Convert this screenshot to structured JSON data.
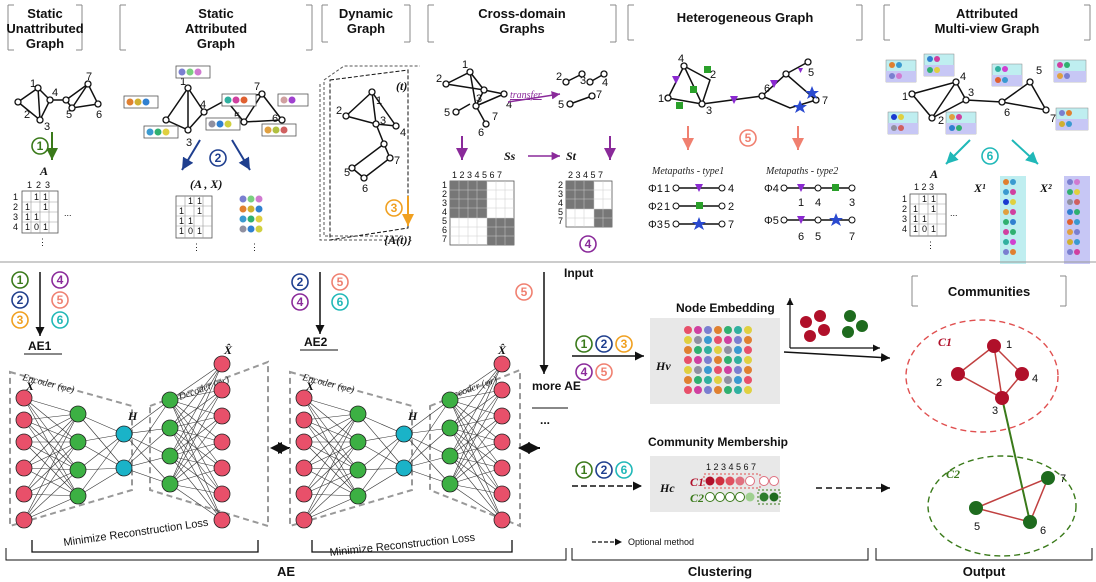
{
  "headers": {
    "static_unattributed": [
      "Static",
      "Unattributed",
      "Graph"
    ],
    "static_attributed": [
      "Static",
      "Attributed",
      "Graph"
    ],
    "dynamic": [
      "Dynamic",
      "Graph"
    ],
    "cross_domain": [
      "Cross-domain",
      "Graphs"
    ],
    "heterogeneous": [
      "Heterogeneous Graph"
    ],
    "multiview": [
      "Attributed",
      "Multi-view Graph"
    ]
  },
  "graph_node_labels": [
    "1",
    "2",
    "3",
    "4",
    "5",
    "6",
    "7"
  ],
  "symbols": {
    "A": "A",
    "A_X": "(A , X)",
    "At": "{A(t)}",
    "t": "(t)",
    "transfer": "transfer",
    "Ss": "Ss",
    "St": "St",
    "X": "X",
    "H": "H",
    "Xhat": "X̂",
    "X1": "X¹",
    "X2": "X²",
    "Hv": "Hv",
    "Hc": "Hc",
    "C1": "C1",
    "C2": "C2"
  },
  "matrix_A": {
    "cols": [
      "1",
      "2",
      "3"
    ],
    "rows": [
      [
        "1",
        "",
        "1",
        "1"
      ],
      [
        "2",
        "1",
        "",
        "1"
      ],
      [
        "3",
        "1",
        "1",
        ""
      ],
      [
        "4",
        "1",
        "0",
        "1"
      ]
    ],
    "dots": "⋮",
    "hdots": "..."
  },
  "metapaths": {
    "type1_title": "Metapaths - type1",
    "type2_title": "Metapaths - type2",
    "type1": [
      {
        "phi": "Φ1",
        "from": "1",
        "to": "4"
      },
      {
        "phi": "Φ2",
        "from": "1",
        "to": "2"
      },
      {
        "phi": "Φ3",
        "from": "5",
        "to": "7"
      }
    ],
    "type2": [
      {
        "phi": "Φ4",
        "nodes": [
          "1",
          "4",
          "3"
        ]
      },
      {
        "phi": "Φ5",
        "nodes": [
          "6",
          "5",
          "7"
        ]
      }
    ]
  },
  "circled": {
    "c1": "1",
    "c2": "2",
    "c3": "3",
    "c4": "4",
    "c5": "5",
    "c6": "6"
  },
  "labels": {
    "input": "Input",
    "ae1": "AE1",
    "ae2": "AE2",
    "more_ae": "more AE",
    "ellipsis": "...",
    "encoder": "Encoder (φe)",
    "decoder": "Decoder (φr)",
    "loss": "Minimize Reconstruction Loss",
    "node_embedding": "Node Embedding",
    "community_membership": "Community Membership",
    "communities": "Communities",
    "optional_method": "Optional method",
    "membership_cols": "1 2 3 4 5 6 7"
  },
  "footer": {
    "ae": "AE",
    "clustering": "Clustering",
    "output": "Output"
  },
  "colors": {
    "node_red": "#e8506a",
    "node_green": "#3cb043",
    "node_cyan": "#1ab3c8",
    "dark_red": "#b0102a",
    "dark_green": "#1e6b1e",
    "c_green": "#3a7a1a",
    "c_navy": "#1f3f8f",
    "c_orange": "#f0a020",
    "c_purple": "#8a2a9a",
    "c_salmon": "#f08070",
    "c_teal": "#20b8b8"
  }
}
